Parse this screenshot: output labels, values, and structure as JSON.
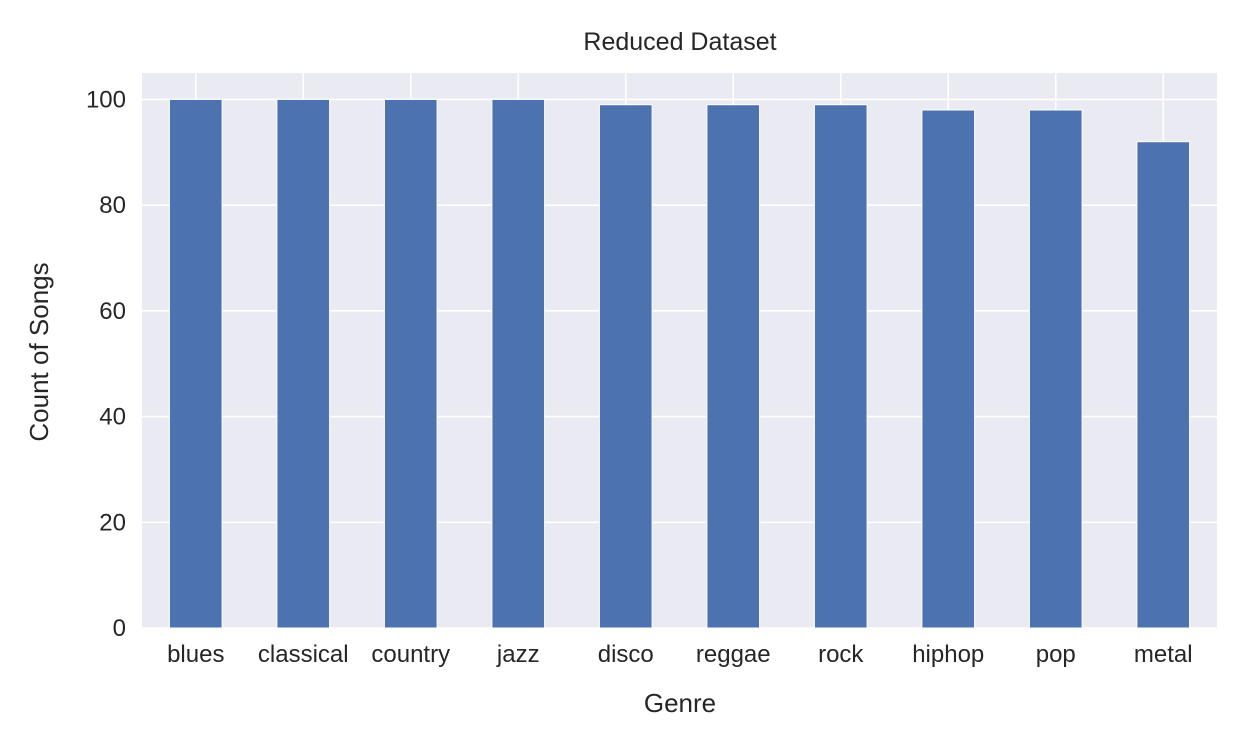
{
  "chart_data": {
    "type": "bar",
    "title": "Reduced Dataset",
    "xlabel": "Genre",
    "ylabel": "Count of Songs",
    "categories": [
      "blues",
      "classical",
      "country",
      "jazz",
      "disco",
      "reggae",
      "rock",
      "hiphop",
      "pop",
      "metal"
    ],
    "values": [
      100,
      100,
      100,
      100,
      99,
      99,
      99,
      98,
      98,
      92
    ],
    "ylim": [
      0,
      105
    ],
    "yticks": [
      "0",
      "20",
      "40",
      "60",
      "80",
      "100"
    ],
    "grid": true,
    "legend": "none",
    "colors": {
      "bar": "#4c72b0",
      "plot_background": "#eaeaf2",
      "grid": "#ffffff"
    }
  }
}
